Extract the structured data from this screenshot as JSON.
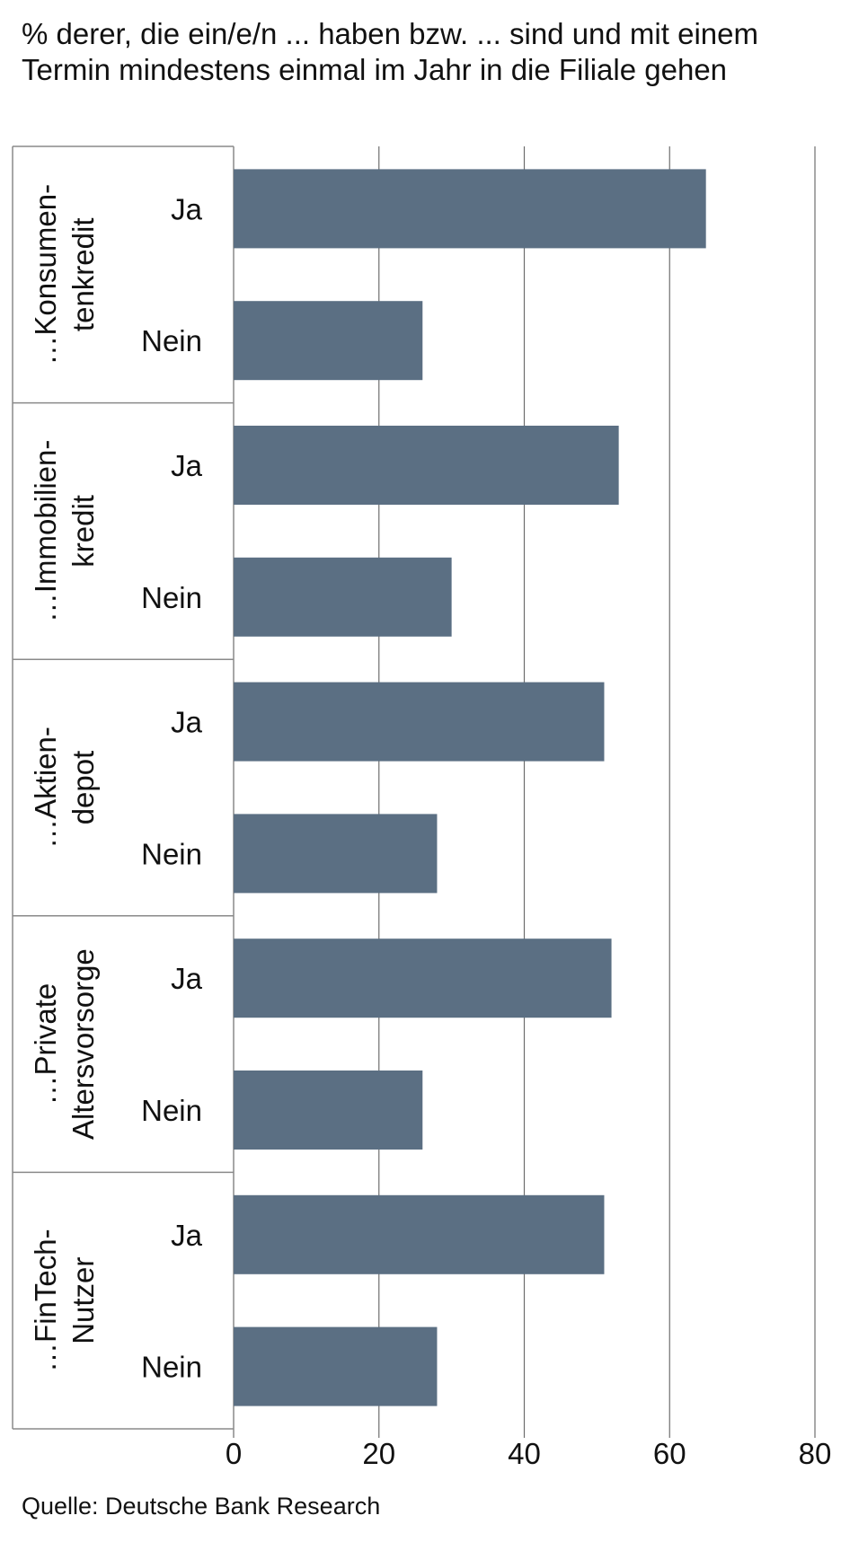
{
  "title": "% derer, die ein/e/n ... haben bzw. ... sind und mit einem Termin mindestens einmal im Jahr in die Filiale gehen",
  "source": "Quelle: Deutsche Bank Research",
  "colors": {
    "bar": "#5b6f83",
    "grid": "#6e6e6e",
    "frame": "#8a8a8a"
  },
  "chart_data": {
    "type": "bar",
    "orientation": "horizontal",
    "groups": [
      {
        "label_lines": [
          "…Konsumen-",
          "tenkredit"
        ],
        "bars": [
          {
            "label": "Ja",
            "value": 65
          },
          {
            "label": "Nein",
            "value": 26
          }
        ]
      },
      {
        "label_lines": [
          "…Immobilien-",
          "kredit"
        ],
        "bars": [
          {
            "label": "Ja",
            "value": 53
          },
          {
            "label": "Nein",
            "value": 30
          }
        ]
      },
      {
        "label_lines": [
          "…Aktien-",
          "depot"
        ],
        "bars": [
          {
            "label": "Ja",
            "value": 51
          },
          {
            "label": "Nein",
            "value": 28
          }
        ]
      },
      {
        "label_lines": [
          "…Private",
          "Altersvorsorge"
        ],
        "bars": [
          {
            "label": "Ja",
            "value": 52
          },
          {
            "label": "Nein",
            "value": 26
          }
        ]
      },
      {
        "label_lines": [
          "…FinTech-",
          "Nutzer"
        ],
        "bars": [
          {
            "label": "Ja",
            "value": 51
          },
          {
            "label": "Nein",
            "value": 28
          }
        ]
      }
    ],
    "xlim": [
      0,
      80
    ],
    "xticks": [
      0,
      20,
      40,
      60,
      80
    ],
    "grid": true,
    "legend": "none"
  }
}
